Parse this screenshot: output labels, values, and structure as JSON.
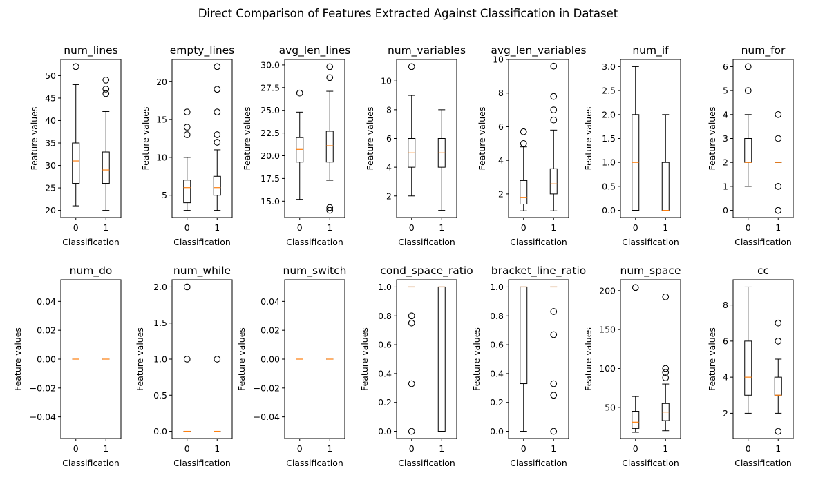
{
  "figure": {
    "title": "Direct Comparison of Features Extracted Against Classification in Dataset",
    "colors": {
      "median": "#ff7f0e",
      "box": "#000000",
      "background": "#ffffff"
    }
  },
  "chart_data": [
    {
      "type": "box",
      "title": "num_lines",
      "xlabel": "Classification",
      "ylabel": "Feature values",
      "categories": [
        "0",
        "1"
      ],
      "ylim": [
        18.4,
        53.6
      ],
      "yticks": [
        20,
        25,
        30,
        35,
        40,
        45,
        50
      ],
      "ytick_labels": [
        "20",
        "25",
        "30",
        "35",
        "40",
        "45",
        "50"
      ],
      "boxes": [
        {
          "whislo": 21,
          "q1": 26,
          "med": 31,
          "q3": 35,
          "whishi": 48,
          "fliers": [
            52
          ]
        },
        {
          "whislo": 20,
          "q1": 26,
          "med": 29,
          "q3": 33,
          "whishi": 42,
          "fliers": [
            46,
            47,
            49
          ]
        }
      ]
    },
    {
      "type": "box",
      "title": "empty_lines",
      "xlabel": "Classification",
      "ylabel": "Feature values",
      "categories": [
        "0",
        "1"
      ],
      "ylim": [
        2.05,
        22.95
      ],
      "yticks": [
        5,
        10,
        15,
        20
      ],
      "ytick_labels": [
        "5",
        "10",
        "15",
        "20"
      ],
      "boxes": [
        {
          "whislo": 3,
          "q1": 4,
          "med": 6,
          "q3": 7,
          "whishi": 10,
          "fliers": [
            13,
            14,
            16
          ]
        },
        {
          "whislo": 3,
          "q1": 5,
          "med": 6,
          "q3": 7.5,
          "whishi": 11,
          "fliers": [
            12,
            13,
            16,
            19,
            22
          ]
        }
      ]
    },
    {
      "type": "box",
      "title": "avg_len_lines",
      "xlabel": "Classification",
      "ylabel": "Feature values",
      "categories": [
        "0",
        "1"
      ],
      "ylim": [
        13.2,
        30.6
      ],
      "yticks": [
        15.0,
        17.5,
        20.0,
        22.5,
        25.0,
        27.5,
        30.0
      ],
      "ytick_labels": [
        "15.0",
        "17.5",
        "20.0",
        "22.5",
        "25.0",
        "27.5",
        "30.0"
      ],
      "boxes": [
        {
          "whislo": 15.2,
          "q1": 19.3,
          "med": 20.7,
          "q3": 22.0,
          "whishi": 24.8,
          "fliers": [
            26.9
          ]
        },
        {
          "whislo": 17.3,
          "q1": 19.3,
          "med": 21.1,
          "q3": 22.7,
          "whishi": 27.1,
          "fliers": [
            14.0,
            14.3,
            28.6,
            29.8
          ]
        }
      ]
    },
    {
      "type": "box",
      "title": "num_variables",
      "xlabel": "Classification",
      "ylabel": "Feature values",
      "categories": [
        "0",
        "1"
      ],
      "ylim": [
        0.5,
        11.5
      ],
      "yticks": [
        2,
        4,
        6,
        8,
        10
      ],
      "ytick_labels": [
        "2",
        "4",
        "6",
        "8",
        "10"
      ],
      "boxes": [
        {
          "whislo": 2,
          "q1": 4,
          "med": 5,
          "q3": 6,
          "whishi": 9,
          "fliers": [
            11
          ]
        },
        {
          "whislo": 1,
          "q1": 4,
          "med": 5,
          "q3": 6,
          "whishi": 8,
          "fliers": []
        }
      ]
    },
    {
      "type": "box",
      "title": "avg_len_variables",
      "xlabel": "Classification",
      "ylabel": "Feature values",
      "categories": [
        "0",
        "1"
      ],
      "ylim": [
        0.6,
        10.0
      ],
      "yticks": [
        2,
        4,
        6,
        8,
        10
      ],
      "ytick_labels": [
        "2",
        "4",
        "6",
        "8",
        "10"
      ],
      "boxes": [
        {
          "whislo": 1.0,
          "q1": 1.4,
          "med": 1.8,
          "q3": 2.8,
          "whishi": 4.8,
          "fliers": [
            5.0,
            5.7
          ]
        },
        {
          "whislo": 1.0,
          "q1": 2.0,
          "med": 2.6,
          "q3": 3.5,
          "whishi": 5.8,
          "fliers": [
            6.4,
            7.0,
            7.8,
            9.6
          ]
        }
      ]
    },
    {
      "type": "box",
      "title": "num_if",
      "xlabel": "Classification",
      "ylabel": "Feature values",
      "categories": [
        "0",
        "1"
      ],
      "ylim": [
        -0.15,
        3.15
      ],
      "yticks": [
        0.0,
        0.5,
        1.0,
        1.5,
        2.0,
        2.5,
        3.0
      ],
      "ytick_labels": [
        "0.0",
        "0.5",
        "1.0",
        "1.5",
        "2.0",
        "2.5",
        "3.0"
      ],
      "boxes": [
        {
          "whislo": 0,
          "q1": 0,
          "med": 1,
          "q3": 2,
          "whishi": 3,
          "fliers": []
        },
        {
          "whislo": 0,
          "q1": 0,
          "med": 0,
          "q3": 1,
          "whishi": 2,
          "fliers": []
        }
      ]
    },
    {
      "type": "box",
      "title": "num_for",
      "xlabel": "Classification",
      "ylabel": "Feature values",
      "categories": [
        "0",
        "1"
      ],
      "ylim": [
        -0.3,
        6.3
      ],
      "yticks": [
        0,
        1,
        2,
        3,
        4,
        5,
        6
      ],
      "ytick_labels": [
        "0",
        "1",
        "2",
        "3",
        "4",
        "5",
        "6"
      ],
      "boxes": [
        {
          "whislo": 1,
          "q1": 2,
          "med": 2,
          "q3": 3,
          "whishi": 4,
          "fliers": [
            5,
            6
          ]
        },
        {
          "whislo": 2,
          "q1": 2,
          "med": 2,
          "q3": 2,
          "whishi": 2,
          "fliers": [
            0,
            1,
            3,
            4
          ]
        }
      ]
    },
    {
      "type": "box",
      "title": "num_do",
      "xlabel": "Classification",
      "ylabel": "Feature values",
      "categories": [
        "0",
        "1"
      ],
      "ylim": [
        -0.055,
        0.055
      ],
      "yticks": [
        -0.04,
        -0.02,
        0.0,
        0.02,
        0.04
      ],
      "ytick_labels": [
        "−0.04",
        "−0.02",
        "0.00",
        "0.02",
        "0.04"
      ],
      "boxes": [
        {
          "whislo": 0,
          "q1": 0,
          "med": 0,
          "q3": 0,
          "whishi": 0,
          "fliers": []
        },
        {
          "whislo": 0,
          "q1": 0,
          "med": 0,
          "q3": 0,
          "whishi": 0,
          "fliers": []
        }
      ]
    },
    {
      "type": "box",
      "title": "num_while",
      "xlabel": "Classification",
      "ylabel": "Feature values",
      "categories": [
        "0",
        "1"
      ],
      "ylim": [
        -0.1,
        2.1
      ],
      "yticks": [
        0.0,
        0.5,
        1.0,
        1.5,
        2.0
      ],
      "ytick_labels": [
        "0.0",
        "0.5",
        "1.0",
        "1.5",
        "2.0"
      ],
      "boxes": [
        {
          "whislo": 0,
          "q1": 0,
          "med": 0,
          "q3": 0,
          "whishi": 0,
          "fliers": [
            1,
            2
          ]
        },
        {
          "whislo": 0,
          "q1": 0,
          "med": 0,
          "q3": 0,
          "whishi": 0,
          "fliers": [
            1
          ]
        }
      ]
    },
    {
      "type": "box",
      "title": "num_switch",
      "xlabel": "Classification",
      "ylabel": "Feature values",
      "categories": [
        "0",
        "1"
      ],
      "ylim": [
        -0.055,
        0.055
      ],
      "yticks": [
        -0.04,
        -0.02,
        0.0,
        0.02,
        0.04
      ],
      "ytick_labels": [
        "−0.04",
        "−0.02",
        "0.00",
        "0.02",
        "0.04"
      ],
      "boxes": [
        {
          "whislo": 0,
          "q1": 0,
          "med": 0,
          "q3": 0,
          "whishi": 0,
          "fliers": []
        },
        {
          "whislo": 0,
          "q1": 0,
          "med": 0,
          "q3": 0,
          "whishi": 0,
          "fliers": []
        }
      ]
    },
    {
      "type": "box",
      "title": "cond_space_ratio",
      "xlabel": "Classification",
      "ylabel": "Feature values",
      "categories": [
        "0",
        "1"
      ],
      "ylim": [
        -0.05,
        1.05
      ],
      "yticks": [
        0.0,
        0.2,
        0.4,
        0.6,
        0.8,
        1.0
      ],
      "ytick_labels": [
        "0.0",
        "0.2",
        "0.4",
        "0.6",
        "0.8",
        "1.0"
      ],
      "boxes": [
        {
          "whislo": 1,
          "q1": 1,
          "med": 1,
          "q3": 1,
          "whishi": 1,
          "fliers": [
            0.0,
            0.33,
            0.75,
            0.8
          ]
        },
        {
          "whislo": 0,
          "q1": 0,
          "med": 1,
          "q3": 1,
          "whishi": 1,
          "fliers": []
        }
      ]
    },
    {
      "type": "box",
      "title": "bracket_line_ratio",
      "xlabel": "Classification",
      "ylabel": "Feature values",
      "categories": [
        "0",
        "1"
      ],
      "ylim": [
        -0.05,
        1.05
      ],
      "yticks": [
        0.0,
        0.2,
        0.4,
        0.6,
        0.8,
        1.0
      ],
      "ytick_labels": [
        "0.0",
        "0.2",
        "0.4",
        "0.6",
        "0.8",
        "1.0"
      ],
      "boxes": [
        {
          "whislo": 0,
          "q1": 0.33,
          "med": 1,
          "q3": 1,
          "whishi": 1,
          "fliers": []
        },
        {
          "whislo": 1,
          "q1": 1,
          "med": 1,
          "q3": 1,
          "whishi": 1,
          "fliers": [
            0.0,
            0.25,
            0.33,
            0.67,
            0.83
          ]
        }
      ]
    },
    {
      "type": "box",
      "title": "num_space",
      "xlabel": "Classification",
      "ylabel": "Feature values",
      "categories": [
        "0",
        "1"
      ],
      "ylim": [
        10,
        214
      ],
      "yticks": [
        50,
        100,
        150,
        200
      ],
      "ytick_labels": [
        "50",
        "100",
        "150",
        "200"
      ],
      "boxes": [
        {
          "whislo": 18,
          "q1": 23,
          "med": 31,
          "q3": 45,
          "whishi": 64,
          "fliers": [
            204
          ]
        },
        {
          "whislo": 20,
          "q1": 33,
          "med": 44,
          "q3": 55,
          "whishi": 80,
          "fliers": [
            88,
            95,
            100,
            192
          ]
        }
      ]
    },
    {
      "type": "box",
      "title": "cc",
      "xlabel": "Classification",
      "ylabel": "Feature values",
      "categories": [
        "0",
        "1"
      ],
      "ylim": [
        0.6,
        9.4
      ],
      "yticks": [
        2,
        4,
        6,
        8
      ],
      "ytick_labels": [
        "2",
        "4",
        "6",
        "8"
      ],
      "boxes": [
        {
          "whislo": 2,
          "q1": 3,
          "med": 4,
          "q3": 6,
          "whishi": 9,
          "fliers": []
        },
        {
          "whislo": 2,
          "q1": 3,
          "med": 3,
          "q3": 4,
          "whishi": 5,
          "fliers": [
            1,
            6,
            7
          ]
        }
      ]
    }
  ]
}
